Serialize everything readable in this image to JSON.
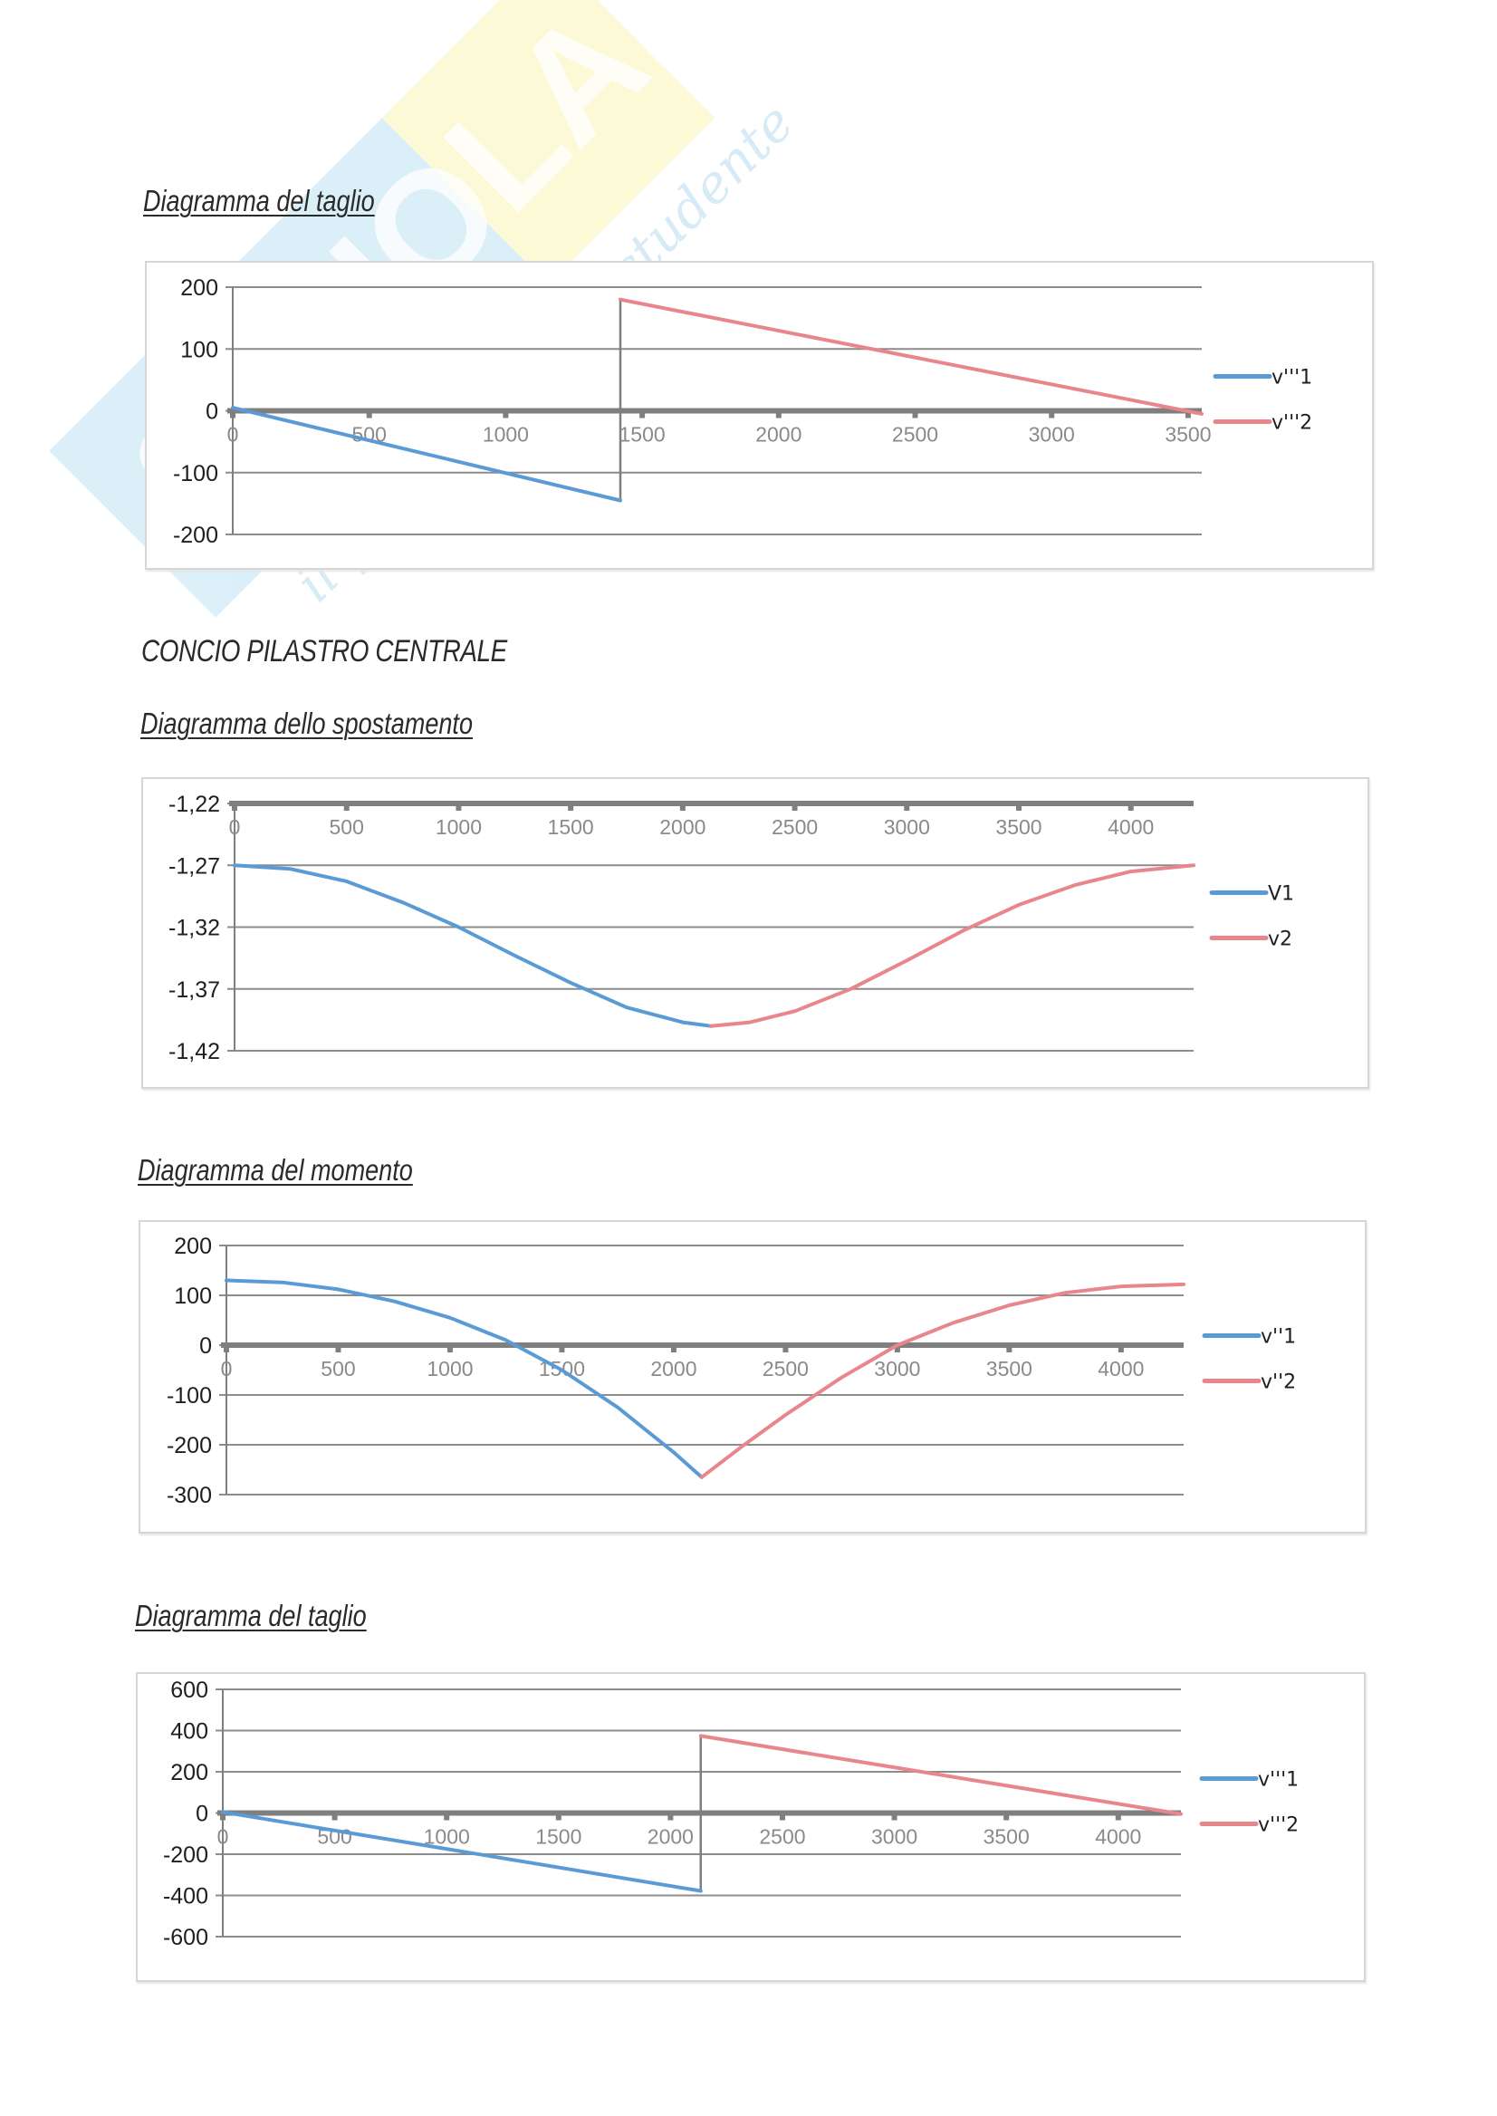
{
  "page": {
    "headings": {
      "taglio_1": "Diagramma del taglio",
      "section": "CONCIO PILASTRO CENTRALE",
      "spostamento": "Diagramma dello spostamento",
      "momento": "Diagramma del momento",
      "taglio_2": "Diagramma del taglio"
    },
    "watermark": {
      "brand": "SKUOLA.net",
      "tagline": "il paradiso dello studente"
    }
  },
  "colors": {
    "series1": "#5b9bd5",
    "series2": "#e8868c",
    "grid": "#8c8c8c",
    "axis": "#7f7f7f"
  },
  "chart_data": [
    {
      "id": "taglio_1",
      "type": "line",
      "title": "Diagramma del taglio",
      "xlabel": "",
      "ylabel": "",
      "xlim": [
        0,
        3550
      ],
      "ylim": [
        -200,
        200
      ],
      "yticks": [
        200,
        100,
        0,
        -100,
        -200
      ],
      "ytick_labels": [
        "200",
        "100",
        "0",
        "-100",
        "-200"
      ],
      "xticks": [
        0,
        500,
        1000,
        1500,
        2000,
        2500,
        3000,
        3500
      ],
      "xtick_labels": [
        "0",
        "500",
        "1000",
        "1500",
        "2000",
        "2500",
        "3000",
        "3500"
      ],
      "grid": true,
      "legend": "right",
      "series": [
        {
          "name": "v'''1",
          "x": [
            0,
            1420
          ],
          "y": [
            5,
            -145
          ]
        },
        {
          "name": "v'''2",
          "x": [
            1420,
            3550
          ],
          "y": [
            180,
            -5
          ]
        }
      ],
      "jump_at": 1420
    },
    {
      "id": "spostamento",
      "type": "line",
      "title": "Diagramma dello spostamento",
      "xlabel": "",
      "ylabel": "",
      "xlim": [
        0,
        4280
      ],
      "ylim": [
        -1.42,
        -1.22
      ],
      "yticks": [
        -1.22,
        -1.27,
        -1.32,
        -1.37,
        -1.42
      ],
      "ytick_labels": [
        "-1,22",
        "-1,27",
        "-1,32",
        "-1,37",
        "-1,42"
      ],
      "xticks": [
        0,
        500,
        1000,
        1500,
        2000,
        2500,
        3000,
        3500,
        4000
      ],
      "xtick_labels": [
        "0",
        "500",
        "1000",
        "1500",
        "2000",
        "2500",
        "3000",
        "3500",
        "4000"
      ],
      "xaxis_at": -1.22,
      "grid": true,
      "legend": "right",
      "series": [
        {
          "name": "V1",
          "x": [
            0,
            250,
            500,
            750,
            1000,
            1250,
            1500,
            1750,
            2000,
            2125
          ],
          "y": [
            -1.27,
            -1.273,
            -1.283,
            -1.3,
            -1.32,
            -1.343,
            -1.365,
            -1.385,
            -1.397,
            -1.4
          ]
        },
        {
          "name": "v2",
          "x": [
            2125,
            2300,
            2500,
            2750,
            3000,
            3250,
            3500,
            3750,
            4000,
            4280
          ],
          "y": [
            -1.4,
            -1.397,
            -1.388,
            -1.37,
            -1.347,
            -1.323,
            -1.302,
            -1.286,
            -1.275,
            -1.27
          ]
        }
      ]
    },
    {
      "id": "momento",
      "type": "line",
      "title": "Diagramma del momento",
      "xlabel": "",
      "ylabel": "",
      "xlim": [
        0,
        4280
      ],
      "ylim": [
        -300,
        200
      ],
      "yticks": [
        200,
        100,
        0,
        -100,
        -200,
        -300
      ],
      "ytick_labels": [
        "200",
        "100",
        "0",
        "-100",
        "-200",
        "-300"
      ],
      "xticks": [
        0,
        500,
        1000,
        1500,
        2000,
        2500,
        3000,
        3500,
        4000
      ],
      "xtick_labels": [
        "0",
        "500",
        "1000",
        "1500",
        "2000",
        "2500",
        "3000",
        "3500",
        "4000"
      ],
      "grid": true,
      "legend": "right",
      "series": [
        {
          "name": "v''1",
          "x": [
            0,
            250,
            500,
            750,
            1000,
            1250,
            1500,
            1750,
            2000,
            2125
          ],
          "y": [
            130,
            126,
            112,
            88,
            55,
            10,
            -50,
            -125,
            -215,
            -265
          ]
        },
        {
          "name": "v''2",
          "x": [
            2125,
            2300,
            2500,
            2750,
            3000,
            3250,
            3500,
            3750,
            4000,
            4280
          ],
          "y": [
            -265,
            -205,
            -140,
            -65,
            0,
            45,
            80,
            105,
            118,
            122
          ]
        }
      ]
    },
    {
      "id": "taglio_2",
      "type": "line",
      "title": "Diagramma del taglio",
      "xlabel": "",
      "ylabel": "",
      "xlim": [
        0,
        4280
      ],
      "ylim": [
        -600,
        600
      ],
      "yticks": [
        600,
        400,
        200,
        0,
        -200,
        -400,
        -600
      ],
      "ytick_labels": [
        "600",
        "400",
        "200",
        "0",
        "-200",
        "-400",
        "-600"
      ],
      "xticks": [
        0,
        500,
        1000,
        1500,
        2000,
        2500,
        3000,
        3500,
        4000
      ],
      "xtick_labels": [
        "0",
        "500",
        "1000",
        "1500",
        "2000",
        "2500",
        "3000",
        "3500",
        "4000"
      ],
      "grid": true,
      "legend": "right",
      "series": [
        {
          "name": "v'''1",
          "x": [
            0,
            2135
          ],
          "y": [
            5,
            -378
          ]
        },
        {
          "name": "v'''2",
          "x": [
            2135,
            4280
          ],
          "y": [
            374,
            -5
          ]
        }
      ],
      "jump_at": 2135
    }
  ]
}
